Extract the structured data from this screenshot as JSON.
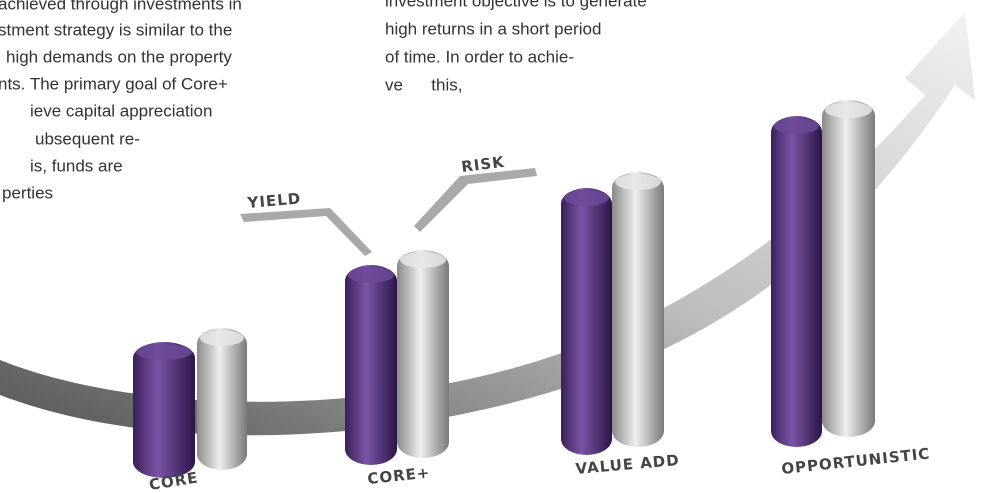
{
  "left_paragraph": {
    "lines": [
      "achieved through investments in",
      "stment strategy is similar to the",
      "high demands on the property",
      "nts. The primary goal of Core+",
      "ieve capital appreciation",
      "ubsequent re-",
      "is, funds are",
      "perties"
    ]
  },
  "right_paragraph": {
    "lines": [
      "investment objective is to generate",
      "high returns in a short period",
      "of time. In order to achie-",
      "ve      this,"
    ]
  },
  "legend": {
    "yield": "YIELD",
    "risk": "RISK"
  },
  "categories": [
    "CORE",
    "CORE+",
    "VALUE ADD",
    "OPPORTUNISTIC"
  ]
}
